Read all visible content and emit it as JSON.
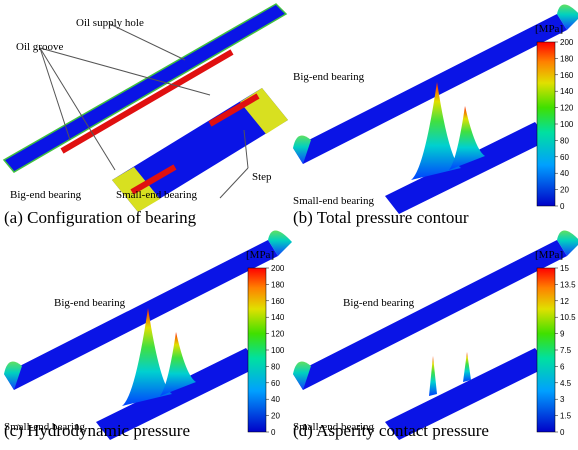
{
  "panels": [
    {
      "caption": "(a) Configuration of bearing",
      "labels": [
        "Oil supply hole",
        "Oil groove",
        "Big-end bearing",
        "Small-end bearing",
        "Step"
      ]
    },
    {
      "caption": "(b) Total pressure contour",
      "labels": [
        "Big-end bearing",
        "Small-end bearing"
      ],
      "colorbar": {
        "unit": "[MPa]",
        "ticks": [
          0,
          20,
          40,
          60,
          80,
          100,
          120,
          140,
          160,
          180,
          200
        ]
      }
    },
    {
      "caption": "(c) Hydrodynamic pressure",
      "labels": [
        "Big-end bearing",
        "Small-end bearing"
      ],
      "colorbar": {
        "unit": "[MPa]",
        "ticks": [
          0,
          20,
          40,
          60,
          80,
          100,
          120,
          140,
          160,
          180,
          200
        ]
      }
    },
    {
      "caption": "(d) Asperity contact pressure",
      "labels": [
        "Big-end bearing",
        "Small-end bearing"
      ],
      "colorbar": {
        "unit": "[MPa]",
        "ticks": [
          0,
          1.5,
          3,
          4.5,
          6,
          7.5,
          9,
          10.5,
          12,
          13.5,
          15
        ]
      }
    }
  ]
}
